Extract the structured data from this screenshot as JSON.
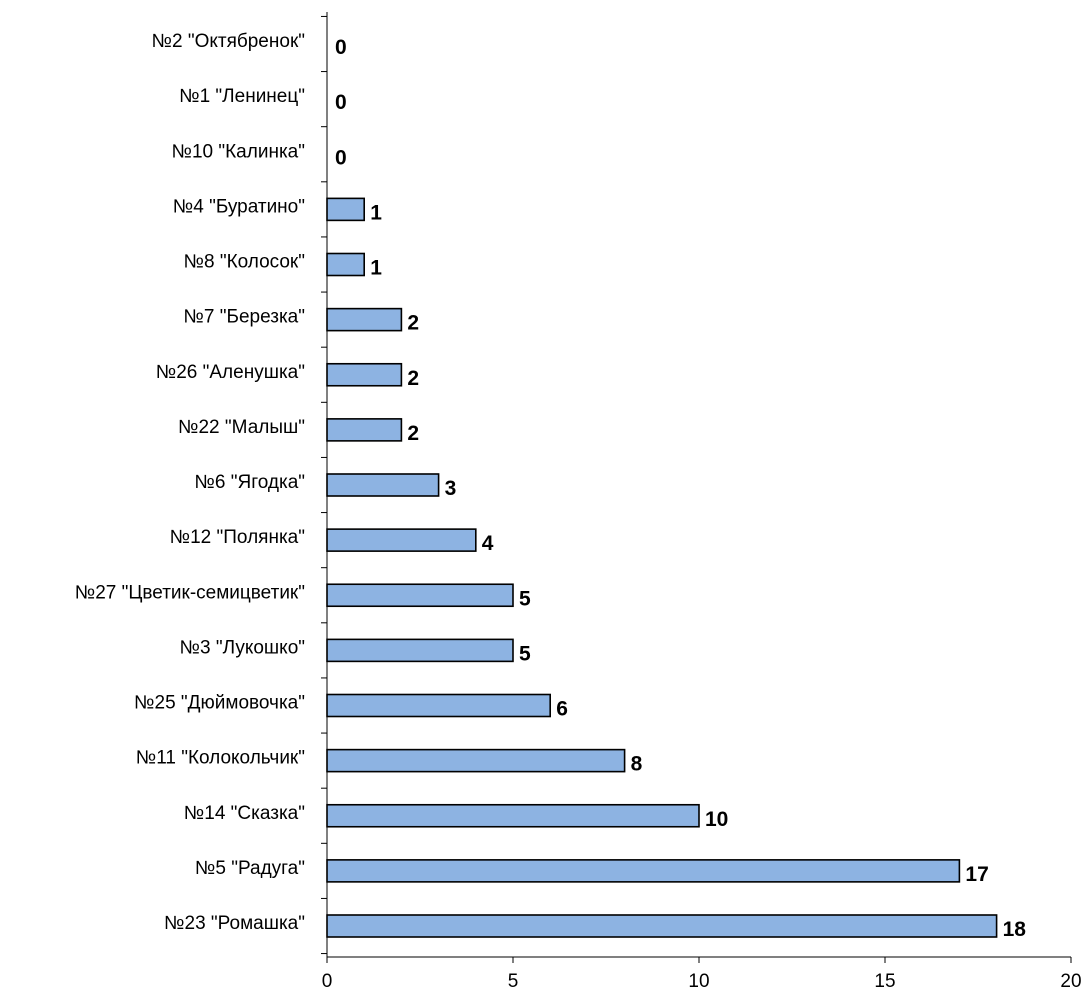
{
  "chart_data": {
    "type": "bar",
    "orientation": "horizontal",
    "categories": [
      "№2 \"Октябренок\"",
      "№1 \"Ленинец\"",
      "№10 \"Калинка\"",
      "№4 \"Буратино\"",
      "№8 \"Колосок\"",
      "№7 \"Березка\"",
      "№26 \"Аленушка\"",
      "№22 \"Малыш\"",
      "№6 \"Ягодка\"",
      "№12 \"Полянка\"",
      "№27 \"Цветик-семицветик\"",
      "№3 \"Лукошко\"",
      "№25 \"Дюймовочка\"",
      "№11 \"Колокольчик\"",
      "№14 \"Сказка\"",
      "№5 \"Радуга\"",
      "№23 \"Ромашка\""
    ],
    "values": [
      0,
      0,
      0,
      1,
      1,
      2,
      2,
      2,
      3,
      4,
      5,
      5,
      6,
      8,
      10,
      17,
      18
    ],
    "data_labels": [
      "0",
      "0",
      "0",
      "1",
      "1",
      "2",
      "2",
      "2",
      "3",
      "4",
      "5",
      "5",
      "6",
      "8",
      "10",
      "17",
      "18"
    ],
    "xlim": [
      0,
      20
    ],
    "xticks": [
      0,
      5,
      10,
      15,
      20
    ],
    "xtick_labels": [
      "0",
      "5",
      "10",
      "15",
      "20"
    ],
    "title": "",
    "xlabel": "",
    "ylabel": "",
    "grid": false,
    "legend": "none",
    "bar_color": "#8DB3E2",
    "bar_edge_color": "#000000"
  }
}
